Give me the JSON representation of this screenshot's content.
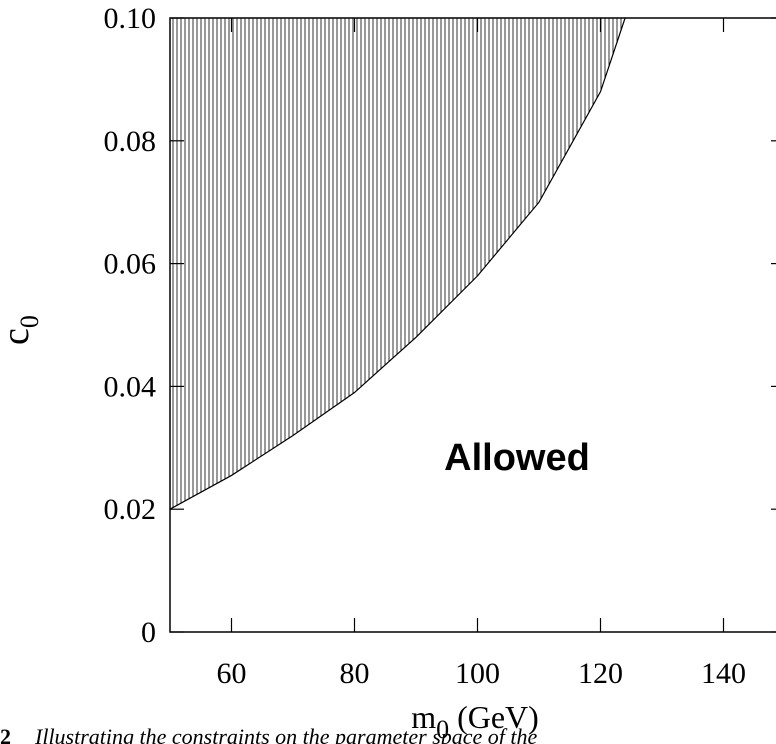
{
  "chart_data": {
    "type": "area",
    "xlabel": {
      "base": "m",
      "sub": "0",
      "unit": "(GeV)"
    },
    "ylabel": {
      "base": "c",
      "sub": "0"
    },
    "annotation": "Allowed",
    "caption_number": "2",
    "caption": "Illustrating the constraints on the parameter space of the",
    "x": [
      50,
      60,
      70,
      80,
      90,
      100,
      110,
      120,
      124
    ],
    "series": [
      {
        "values": [
          0.02,
          0.0255,
          0.032,
          0.039,
          0.048,
          0.058,
          0.07,
          0.088,
          0.1
        ],
        "color": "#000000"
      }
    ],
    "xlim": [
      50,
      150
    ],
    "xticks": [
      60,
      80,
      100,
      120,
      140
    ],
    "ylim": [
      0,
      0.1
    ],
    "yticks": [
      0,
      0.02,
      0.04,
      0.06,
      0.08,
      {
        "value": 0.1,
        "label": "0.10"
      }
    ]
  }
}
